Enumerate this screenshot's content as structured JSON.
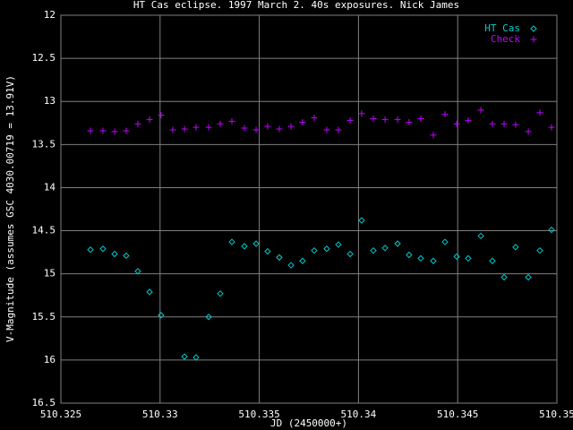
{
  "chart_data": {
    "type": "scatter",
    "title": "HT Cas eclipse. 1997 March 2. 40s exposures. Nick James",
    "x_label": "JD (2450000+)",
    "y_label": "V-Magnitude (assumes GSC 4030.00719 = 13.91V)",
    "xlim": [
      510.325,
      510.35
    ],
    "xticks": [
      510.325,
      510.33,
      510.335,
      510.34,
      510.345,
      510.35
    ],
    "ylim": [
      12,
      16.5
    ],
    "yticks": [
      12,
      12.5,
      13,
      13.5,
      14,
      14.5,
      15,
      15.5,
      16,
      16.5
    ],
    "y_reversed": true,
    "grid": true,
    "legend": "top-right",
    "series": [
      {
        "name": "HT Cas",
        "color": "#00c8c8",
        "marker": "diamond",
        "x": [
          510.32649,
          510.32712,
          510.32771,
          510.32829,
          510.32888,
          510.32947,
          510.33005,
          510.33123,
          510.33181,
          510.33245,
          510.33303,
          510.33362,
          510.33425,
          510.33484,
          510.33542,
          510.33601,
          510.3366,
          510.33718,
          510.33777,
          510.3384,
          510.33899,
          510.33958,
          510.34016,
          510.34075,
          510.34134,
          510.34197,
          510.34255,
          510.34314,
          510.34377,
          510.34436,
          510.34495,
          510.34553,
          510.34617,
          510.34675,
          510.34734,
          510.34792,
          510.34856,
          510.34914,
          510.34973
        ],
        "values": [
          14.72,
          14.71,
          14.77,
          14.79,
          14.97,
          15.21,
          15.48,
          15.96,
          15.97,
          15.5,
          15.23,
          14.63,
          14.68,
          14.65,
          14.74,
          14.81,
          14.9,
          14.85,
          14.73,
          14.71,
          14.66,
          14.77,
          14.38,
          14.73,
          14.7,
          14.65,
          14.78,
          14.82,
          14.85,
          14.63,
          14.8,
          14.82,
          14.56,
          14.85,
          15.04,
          14.69,
          15.04,
          14.73,
          14.49
        ]
      },
      {
        "name": "Check",
        "color": "#c000ff",
        "marker": "plus",
        "x": [
          510.32649,
          510.32712,
          510.32771,
          510.32829,
          510.32888,
          510.32947,
          510.33005,
          510.33064,
          510.33123,
          510.33181,
          510.33245,
          510.33303,
          510.33362,
          510.33425,
          510.33484,
          510.33542,
          510.33601,
          510.3366,
          510.33718,
          510.33777,
          510.3384,
          510.33899,
          510.33958,
          510.34016,
          510.34075,
          510.34134,
          510.34197,
          510.34255,
          510.34314,
          510.34377,
          510.34436,
          510.34495,
          510.34553,
          510.34617,
          510.34675,
          510.34734,
          510.34792,
          510.34856,
          510.34914,
          510.34973
        ],
        "values": [
          13.34,
          13.34,
          13.35,
          13.34,
          13.26,
          13.21,
          13.16,
          13.33,
          13.32,
          13.3,
          13.3,
          13.26,
          13.23,
          13.31,
          13.33,
          13.29,
          13.32,
          13.29,
          13.24,
          13.19,
          13.33,
          13.33,
          13.22,
          13.14,
          13.2,
          13.21,
          13.21,
          13.24,
          13.2,
          13.39,
          13.15,
          13.26,
          13.22,
          13.1,
          13.26,
          13.26,
          13.27,
          13.35,
          13.13,
          13.3
        ]
      }
    ]
  }
}
